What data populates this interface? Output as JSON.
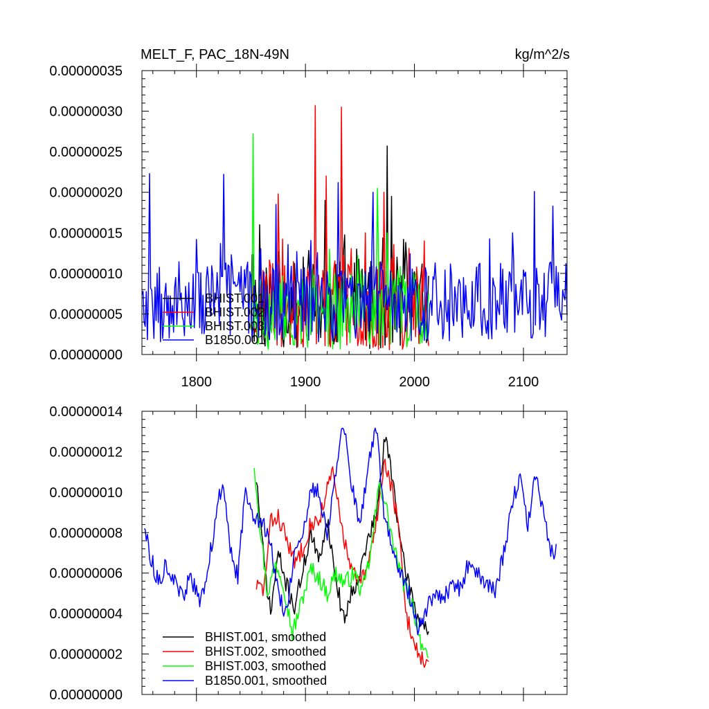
{
  "chart_data": [
    {
      "type": "line",
      "title_left": "MELT_F, PAC_18N-49N",
      "title_right": "kg/m^2/s",
      "xlim": [
        1750,
        2140
      ],
      "ylim": [
        0,
        3.5e-07
      ],
      "xticks": [
        1800,
        1900,
        2000,
        2100
      ],
      "xtick_labels": [
        "1800",
        "1900",
        "2000",
        "2100"
      ],
      "yticks": [
        0,
        5e-08,
        1e-07,
        1.5e-07,
        2e-07,
        2.5e-07,
        3e-07,
        3.5e-07
      ],
      "ytick_labels": [
        "0.00000000",
        "0.00000005",
        "0.00000010",
        "0.00000015",
        "0.00000020",
        "0.00000025",
        "0.00000030",
        "0.00000035"
      ],
      "legend": "bottom-left",
      "series": [
        {
          "name": "BHIST.001",
          "color": "#000000",
          "x_start": 1850,
          "x_end": 2013,
          "mean": 6e-08,
          "amp": 5.5e-08,
          "seed": 11,
          "peaks": [
            [
              1858,
              1.6e-07
            ],
            [
              1918,
              1.9e-07
            ],
            [
              1947,
              1.3e-07
            ],
            [
              1975,
              2.57e-07
            ],
            [
              1979,
              1.95e-07
            ],
            [
              1984,
              1.2e-07
            ]
          ]
        },
        {
          "name": "BHIST.002",
          "color": "#ff0000",
          "x_start": 1850,
          "x_end": 2013,
          "mean": 6e-08,
          "amp": 5.5e-08,
          "seed": 23,
          "peaks": [
            [
              1875,
              1.98e-07
            ],
            [
              1909,
              3.07e-07
            ],
            [
              1919,
              2.2e-07
            ],
            [
              1933,
              3.05e-07
            ],
            [
              1955,
              1.5e-07
            ],
            [
              1972,
              2e-07
            ]
          ]
        },
        {
          "name": "BHIST.003",
          "color": "#00ff00",
          "x_start": 1850,
          "x_end": 2013,
          "mean": 5.5e-08,
          "amp": 5e-08,
          "seed": 37,
          "peaks": [
            [
              1852,
              2.72e-07
            ],
            [
              1922,
              1.3e-07
            ],
            [
              1966,
              2.05e-07
            ],
            [
              1975,
              1.5e-07
            ]
          ]
        },
        {
          "name": "B1850.001",
          "color": "#0000ff",
          "x_start": 1750,
          "x_end": 2140,
          "mean": 6.5e-08,
          "amp": 5e-08,
          "seed": 53,
          "peaks": [
            [
              1757,
              2.23e-07
            ],
            [
              1825,
              2.22e-07
            ],
            [
              1873,
              1.85e-07
            ],
            [
              1930,
              2.12e-07
            ],
            [
              1962,
              2e-07
            ],
            [
              2110,
              2.01e-07
            ],
            [
              2127,
              1.83e-07
            ],
            [
              2090,
              1.5e-07
            ]
          ]
        }
      ]
    },
    {
      "type": "line",
      "xlim": [
        1750,
        2140
      ],
      "ylim": [
        0,
        1.4e-07
      ],
      "xticks": [
        1800,
        1900,
        2000,
        2100
      ],
      "yticks": [
        0,
        2e-08,
        4e-08,
        6e-08,
        8e-08,
        1e-07,
        1.2e-07,
        1.4e-07
      ],
      "ytick_labels": [
        "0.00000000",
        "0.00000002",
        "0.00000004",
        "0.00000006",
        "0.00000008",
        "0.00000010",
        "0.00000012",
        "0.00000014"
      ],
      "legend": "bottom-left",
      "series": [
        {
          "name": "BHIST.001, smoothed",
          "color": "#000000",
          "x_start": 1855,
          "x_end": 2013,
          "seed": 71,
          "knots": [
            [
              1855,
              1.07e-07
            ],
            [
              1862,
              6.5e-08
            ],
            [
              1868,
              4e-08
            ],
            [
              1875,
              7e-08
            ],
            [
              1882,
              5.5e-08
            ],
            [
              1890,
              4.3e-08
            ],
            [
              1897,
              6e-08
            ],
            [
              1905,
              8e-08
            ],
            [
              1912,
              6.5e-08
            ],
            [
              1920,
              8.7e-08
            ],
            [
              1927,
              6e-08
            ],
            [
              1935,
              3.7e-08
            ],
            [
              1942,
              5e-08
            ],
            [
              1950,
              6e-08
            ],
            [
              1958,
              7.8e-08
            ],
            [
              1965,
              8.8e-08
            ],
            [
              1973,
              1.27e-07
            ],
            [
              1980,
              1.08e-07
            ],
            [
              1988,
              7e-08
            ],
            [
              1995,
              5.5e-08
            ],
            [
              2003,
              3.8e-08
            ],
            [
              2013,
              3.2e-08
            ]
          ]
        },
        {
          "name": "BHIST.002, smoothed",
          "color": "#ff0000",
          "x_start": 1855,
          "x_end": 2013,
          "seed": 83,
          "knots": [
            [
              1855,
              5.4e-08
            ],
            [
              1862,
              5.2e-08
            ],
            [
              1868,
              8.5e-08
            ],
            [
              1875,
              8.8e-08
            ],
            [
              1882,
              7.8e-08
            ],
            [
              1890,
              6.5e-08
            ],
            [
              1897,
              7.2e-08
            ],
            [
              1905,
              8.5e-08
            ],
            [
              1912,
              8.5e-08
            ],
            [
              1918,
              9.8e-08
            ],
            [
              1925,
              1.1e-07
            ],
            [
              1932,
              8.7e-08
            ],
            [
              1940,
              6.5e-08
            ],
            [
              1948,
              5.5e-08
            ],
            [
              1956,
              6e-08
            ],
            [
              1965,
              8.5e-08
            ],
            [
              1972,
              1.15e-07
            ],
            [
              1978,
              1.05e-07
            ],
            [
              1985,
              8.5e-08
            ],
            [
              1992,
              4e-08
            ],
            [
              2000,
              2.5e-08
            ],
            [
              2008,
              1.7e-08
            ],
            [
              2013,
              1.4e-08
            ]
          ]
        },
        {
          "name": "BHIST.003, smoothed",
          "color": "#00ff00",
          "x_start": 1853,
          "x_end": 2013,
          "seed": 97,
          "knots": [
            [
              1853,
              1.14e-07
            ],
            [
              1858,
              8.5e-08
            ],
            [
              1865,
              5e-08
            ],
            [
              1873,
              6.5e-08
            ],
            [
              1880,
              5.5e-08
            ],
            [
              1888,
              3e-08
            ],
            [
              1896,
              4.5e-08
            ],
            [
              1905,
              6.2e-08
            ],
            [
              1912,
              5.8e-08
            ],
            [
              1920,
              5e-08
            ],
            [
              1928,
              6e-08
            ],
            [
              1936,
              5.5e-08
            ],
            [
              1945,
              6e-08
            ],
            [
              1952,
              5e-08
            ],
            [
              1960,
              7e-08
            ],
            [
              1968,
              1.05e-07
            ],
            [
              1975,
              9e-08
            ],
            [
              1982,
              7e-08
            ],
            [
              1990,
              5.5e-08
            ],
            [
              1998,
              4.5e-08
            ],
            [
              2005,
              2.8e-08
            ],
            [
              2013,
              1.4e-08
            ]
          ]
        },
        {
          "name": "B1850.001, smoothed",
          "color": "#0000ff",
          "x_start": 1752,
          "x_end": 2130,
          "seed": 113,
          "knots": [
            [
              1752,
              8.4e-08
            ],
            [
              1758,
              6.8e-08
            ],
            [
              1765,
              5.5e-08
            ],
            [
              1772,
              6.5e-08
            ],
            [
              1780,
              5.5e-08
            ],
            [
              1787,
              4.8e-08
            ],
            [
              1795,
              5.8e-08
            ],
            [
              1803,
              4.5e-08
            ],
            [
              1810,
              6e-08
            ],
            [
              1817,
              8.5e-08
            ],
            [
              1824,
              1.07e-07
            ],
            [
              1831,
              7e-08
            ],
            [
              1838,
              5.8e-08
            ],
            [
              1845,
              1.02e-07
            ],
            [
              1852,
              9e-08
            ],
            [
              1860,
              8.5e-08
            ],
            [
              1868,
              7.5e-08
            ],
            [
              1875,
              5e-08
            ],
            [
              1882,
              4e-08
            ],
            [
              1890,
              7e-08
            ],
            [
              1898,
              7.8e-08
            ],
            [
              1905,
              1e-07
            ],
            [
              1912,
              1.02e-07
            ],
            [
              1920,
              8e-08
            ],
            [
              1928,
              1.1e-07
            ],
            [
              1935,
              1.34e-07
            ],
            [
              1942,
              1.05e-07
            ],
            [
              1950,
              8.2e-08
            ],
            [
              1958,
              1.15e-07
            ],
            [
              1965,
              1.32e-07
            ],
            [
              1972,
              9e-08
            ],
            [
              1980,
              7e-08
            ],
            [
              1988,
              6e-08
            ],
            [
              1995,
              5e-08
            ],
            [
              2003,
              3.4e-08
            ],
            [
              2010,
              4e-08
            ],
            [
              2018,
              5e-08
            ],
            [
              2026,
              4.6e-08
            ],
            [
              2034,
              5.5e-08
            ],
            [
              2042,
              5.2e-08
            ],
            [
              2050,
              6.5e-08
            ],
            [
              2058,
              6e-08
            ],
            [
              2066,
              5.5e-08
            ],
            [
              2074,
              5e-08
            ],
            [
              2082,
              7e-08
            ],
            [
              2090,
              9.5e-08
            ],
            [
              2097,
              1.07e-07
            ],
            [
              2104,
              8.5e-08
            ],
            [
              2111,
              1.07e-07
            ],
            [
              2118,
              9e-08
            ],
            [
              2125,
              7e-08
            ],
            [
              2130,
              7.2e-08
            ]
          ]
        }
      ]
    }
  ]
}
